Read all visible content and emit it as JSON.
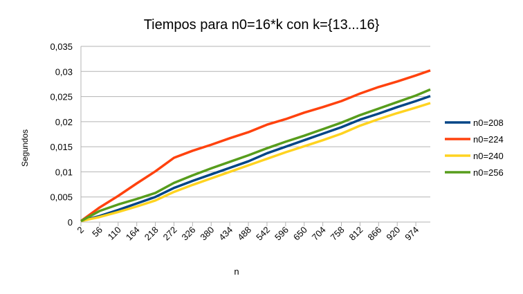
{
  "chart_data": {
    "type": "line",
    "title": "Tiempos para n0=16*k con k={13...16}",
    "x_label": "n",
    "y_label": "Segundos",
    "x": [
      2,
      56,
      110,
      164,
      218,
      272,
      326,
      380,
      434,
      488,
      542,
      596,
      650,
      704,
      758,
      812,
      866,
      920,
      974,
      1016
    ],
    "series": [
      {
        "name": "n0=208",
        "color": "#004586",
        "values": [
          0.0002,
          0.0012,
          0.0024,
          0.0037,
          0.005,
          0.0068,
          0.0082,
          0.0095,
          0.0108,
          0.0121,
          0.0137,
          0.015,
          0.0163,
          0.0176,
          0.0189,
          0.0204,
          0.0216,
          0.0229,
          0.0241,
          0.0251
        ]
      },
      {
        "name": "n0=224",
        "color": "#ff420e",
        "values": [
          0.0002,
          0.0029,
          0.0052,
          0.0077,
          0.0101,
          0.0128,
          0.0142,
          0.0154,
          0.0167,
          0.0179,
          0.0194,
          0.0205,
          0.0218,
          0.0229,
          0.0241,
          0.0256,
          0.0269,
          0.028,
          0.0292,
          0.0302
        ]
      },
      {
        "name": "n0=240",
        "color": "#ffd320",
        "values": [
          0.0002,
          0.001,
          0.002,
          0.0031,
          0.0043,
          0.006,
          0.0074,
          0.0087,
          0.01,
          0.0113,
          0.0126,
          0.0139,
          0.0151,
          0.0163,
          0.0176,
          0.0192,
          0.0205,
          0.0217,
          0.0228,
          0.0237
        ]
      },
      {
        "name": "n0=256",
        "color": "#579d1c",
        "values": [
          0.0002,
          0.0022,
          0.0035,
          0.0046,
          0.0058,
          0.0078,
          0.0093,
          0.0107,
          0.012,
          0.0133,
          0.0147,
          0.016,
          0.0172,
          0.0185,
          0.0198,
          0.0213,
          0.0226,
          0.0239,
          0.0252,
          0.0264
        ]
      }
    ],
    "xlim": [
      2,
      1016
    ],
    "xticks": [
      2,
      56,
      110,
      164,
      218,
      272,
      326,
      380,
      434,
      488,
      542,
      596,
      650,
      704,
      758,
      812,
      866,
      920,
      974
    ],
    "ylim": [
      0,
      0.035
    ],
    "yticks": [
      0,
      {
        "value": 0.005,
        "label": "0,005"
      },
      {
        "value": 0.01,
        "label": "0,01"
      },
      {
        "value": 0.015,
        "label": "0,015"
      },
      {
        "value": 0.02,
        "label": "0,02"
      },
      {
        "value": 0.025,
        "label": "0,025"
      },
      {
        "value": 0.03,
        "label": "0,03"
      },
      {
        "value": 0.035,
        "label": "0,035"
      }
    ],
    "grid": true,
    "legend": "right"
  }
}
